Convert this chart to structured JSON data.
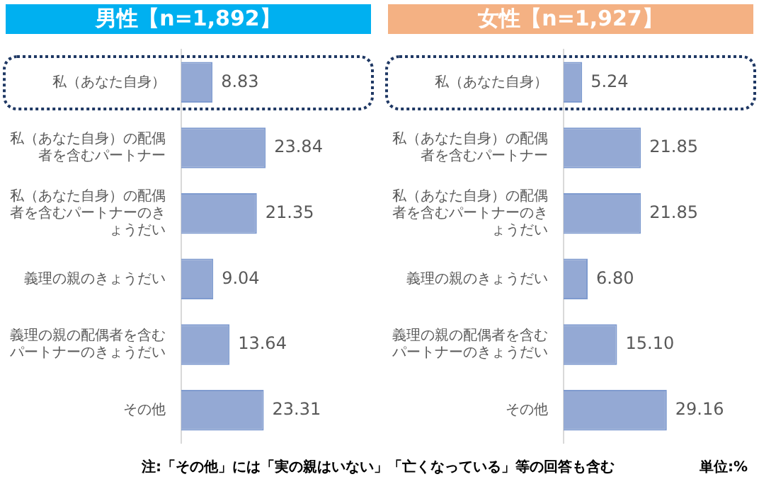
{
  "chart_data": [
    {
      "type": "bar",
      "orientation": "horizontal",
      "title": "男性【n=1,892】",
      "categories": [
        "私（あなた自身）",
        "私（あなた自身）の配偶者を含むパートナー",
        "私（あなた自身）の配偶者を含むパートナーのきょうだい",
        "義理の親のきょうだい",
        "義理の親の配偶者を含むパートナーのきょうだい",
        "その他"
      ],
      "values": [
        8.83,
        23.84,
        21.35,
        9.04,
        13.64,
        23.31
      ],
      "color": "#94a9d4",
      "value_labels": [
        "8.83",
        "23.84",
        "21.35",
        "9.04",
        "13.64",
        "23.31"
      ],
      "tick_labels": "y",
      "annotations": [
        "注:「その他」には「実の親はいない」「亡くなっている」等の回答も含む"
      ]
    },
    {
      "type": "bar",
      "orientation": "horizontal",
      "title": "女性【n=1,927】",
      "categories": [
        "私（あなた自身）",
        "私（あなた自身）の配偶者を含むパートナー",
        "私（あなた自身）の配偶者を含むパートナーのきょうだい",
        "義理の親のきょうだい",
        "義理の親の配偶者を含むパートナーのきょうだい",
        "その他"
      ],
      "values": [
        5.24,
        21.85,
        21.85,
        6.8,
        15.1,
        29.16
      ],
      "color": "#94a9d4",
      "value_labels": [
        "5.24",
        "21.85",
        "21.85",
        "6.80",
        "15.10",
        "29.16"
      ],
      "tick_labels": "y",
      "annotations": [
        "単位:%"
      ]
    }
  ]
}
